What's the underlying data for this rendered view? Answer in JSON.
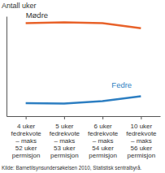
{
  "chart_data": {
    "type": "line",
    "y_label": "Antall uker",
    "source": "Kilde: Barnetilsynsundersøkelsen 2010, Statistisk sentralbyrå.",
    "categories": [
      "4 uker\nfedrekvote\n– maks\n52 uker\npermisjon",
      "5 uker\nfedrekvote\n– maks\n53 uker\npermisjon",
      "6 uker\nfedrekvote\n– maks\n54 uker\npermisjon",
      "10 uker\nfedrekvote\n– maks\n56 uker\npermisjon"
    ],
    "series": [
      {
        "name": "Mødre",
        "color": "#e8632b",
        "values": [
          46.5,
          47,
          46.5,
          44
        ]
      },
      {
        "name": "Fedre",
        "color": "#2e7fc2",
        "values": [
          6.5,
          6.3,
          7.5,
          10
        ]
      }
    ],
    "ylim": [
      0,
      50
    ],
    "tick_labels": "x",
    "grid": false
  }
}
